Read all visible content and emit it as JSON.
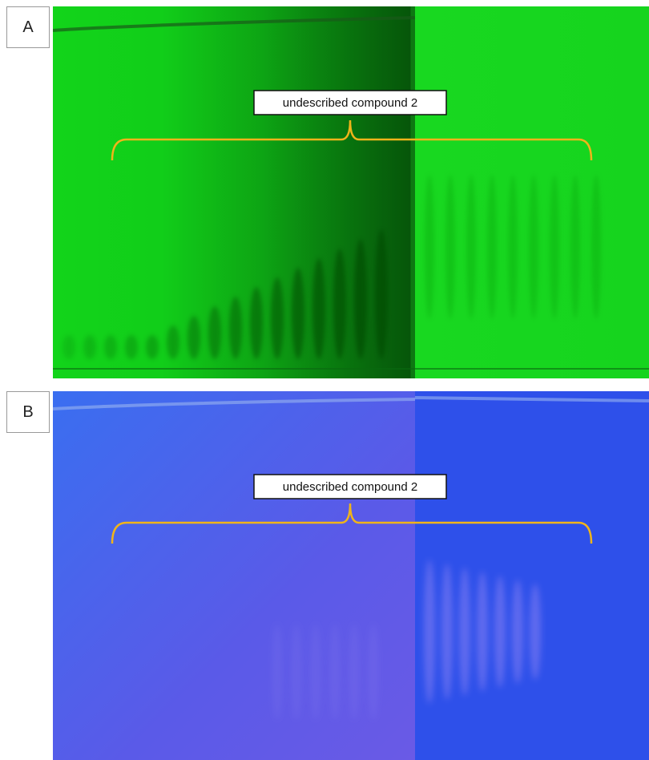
{
  "panels": [
    {
      "label": "A",
      "annotation": "undescribed compound 2"
    },
    {
      "label": "B",
      "annotation": "undescribed compound 2"
    }
  ]
}
